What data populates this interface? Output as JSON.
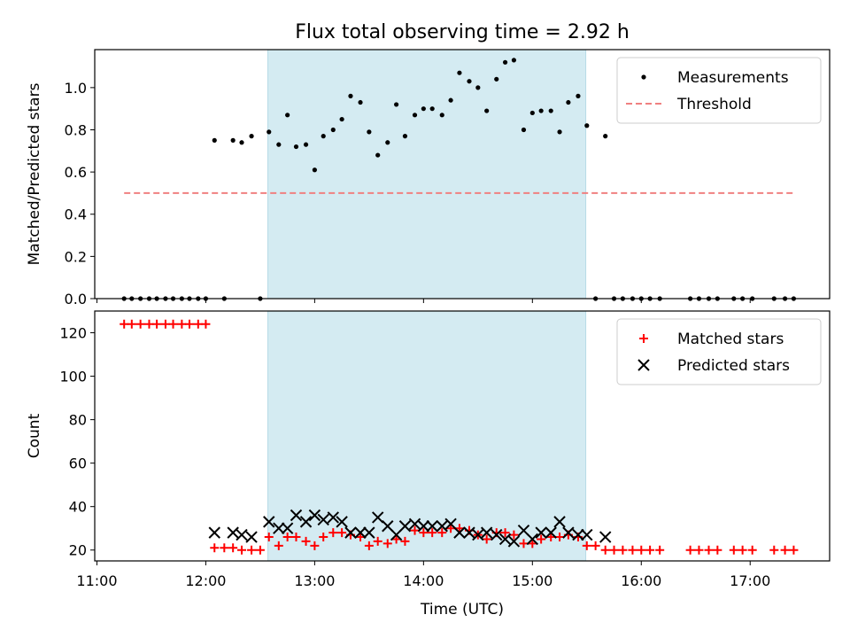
{
  "chart_data": {
    "title": "Flux total observing time = 2.92 h",
    "xlabel": "Time (UTC)",
    "xticks": [
      "11:00",
      "12:00",
      "13:00",
      "14:00",
      "15:00",
      "16:00",
      "17:00"
    ],
    "x_tick_hours": [
      11,
      12,
      13,
      14,
      15,
      16,
      17
    ],
    "xlim_hours": [
      10.98,
      17.73
    ],
    "shaded_span_hours": [
      12.57,
      15.49
    ],
    "shade_color": "#d4ebf2",
    "panels": [
      {
        "type": "scatter",
        "ylabel": "Matched/Predicted stars",
        "ylim": [
          0,
          1.18
        ],
        "yticks": [
          0.0,
          0.2,
          0.4,
          0.6,
          0.8,
          1.0
        ],
        "ytick_labels": [
          "0.0",
          "0.2",
          "0.4",
          "0.6",
          "0.8",
          "1.0"
        ],
        "legend_position": "top-right",
        "threshold": {
          "name": "Threshold",
          "value": 0.5,
          "x_range": [
            11.25,
            17.42
          ],
          "color": "#f08080"
        },
        "series": [
          {
            "name": "Measurements",
            "color": "#000000",
            "points": [
              [
                11.25,
                0
              ],
              [
                11.32,
                0
              ],
              [
                11.4,
                0
              ],
              [
                11.48,
                0
              ],
              [
                11.55,
                0
              ],
              [
                11.63,
                0
              ],
              [
                11.7,
                0
              ],
              [
                11.78,
                0
              ],
              [
                11.85,
                0
              ],
              [
                11.93,
                0
              ],
              [
                12.0,
                0
              ],
              [
                12.08,
                0.75
              ],
              [
                12.17,
                0
              ],
              [
                12.25,
                0.75
              ],
              [
                12.33,
                0.74
              ],
              [
                12.42,
                0.77
              ],
              [
                12.5,
                0
              ],
              [
                12.58,
                0.79
              ],
              [
                12.67,
                0.73
              ],
              [
                12.75,
                0.87
              ],
              [
                12.83,
                0.72
              ],
              [
                12.92,
                0.73
              ],
              [
                13.0,
                0.61
              ],
              [
                13.08,
                0.77
              ],
              [
                13.17,
                0.8
              ],
              [
                13.25,
                0.85
              ],
              [
                13.33,
                0.96
              ],
              [
                13.42,
                0.93
              ],
              [
                13.5,
                0.79
              ],
              [
                13.58,
                0.68
              ],
              [
                13.67,
                0.74
              ],
              [
                13.75,
                0.92
              ],
              [
                13.83,
                0.77
              ],
              [
                13.92,
                0.87
              ],
              [
                14.0,
                0.9
              ],
              [
                14.08,
                0.9
              ],
              [
                14.17,
                0.87
              ],
              [
                14.25,
                0.94
              ],
              [
                14.33,
                1.07
              ],
              [
                14.42,
                1.03
              ],
              [
                14.5,
                1.0
              ],
              [
                14.58,
                0.89
              ],
              [
                14.67,
                1.04
              ],
              [
                14.75,
                1.12
              ],
              [
                14.83,
                1.13
              ],
              [
                14.92,
                0.8
              ],
              [
                15.0,
                0.88
              ],
              [
                15.08,
                0.89
              ],
              [
                15.17,
                0.89
              ],
              [
                15.25,
                0.79
              ],
              [
                15.33,
                0.93
              ],
              [
                15.42,
                0.96
              ],
              [
                15.5,
                0.82
              ],
              [
                15.58,
                0
              ],
              [
                15.67,
                0.77
              ],
              [
                15.75,
                0
              ],
              [
                15.83,
                0
              ],
              [
                15.92,
                0
              ],
              [
                16.0,
                0
              ],
              [
                16.08,
                0
              ],
              [
                16.17,
                0
              ],
              [
                16.45,
                0
              ],
              [
                16.53,
                0
              ],
              [
                16.62,
                0
              ],
              [
                16.7,
                0
              ],
              [
                16.85,
                0
              ],
              [
                16.93,
                0
              ],
              [
                17.02,
                0
              ],
              [
                17.22,
                0
              ],
              [
                17.32,
                0
              ],
              [
                17.4,
                0
              ]
            ]
          }
        ]
      },
      {
        "type": "scatter",
        "ylabel": "Count",
        "ylim": [
          15,
          130
        ],
        "yticks": [
          20,
          40,
          60,
          80,
          100,
          120
        ],
        "ytick_labels": [
          "20",
          "40",
          "60",
          "80",
          "100",
          "120"
        ],
        "legend_position": "top-right",
        "series": [
          {
            "name": "Matched stars",
            "color": "#ff0000",
            "marker": "plus",
            "points": [
              [
                11.25,
                124
              ],
              [
                11.32,
                124
              ],
              [
                11.4,
                124
              ],
              [
                11.48,
                124
              ],
              [
                11.55,
                124
              ],
              [
                11.63,
                124
              ],
              [
                11.7,
                124
              ],
              [
                11.78,
                124
              ],
              [
                11.85,
                124
              ],
              [
                11.93,
                124
              ],
              [
                12.0,
                124
              ],
              [
                12.08,
                21
              ],
              [
                12.17,
                21
              ],
              [
                12.25,
                21
              ],
              [
                12.33,
                20
              ],
              [
                12.42,
                20
              ],
              [
                12.5,
                20
              ],
              [
                12.58,
                26
              ],
              [
                12.67,
                22
              ],
              [
                12.75,
                26
              ],
              [
                12.83,
                26
              ],
              [
                12.92,
                24
              ],
              [
                13.0,
                22
              ],
              [
                13.08,
                26
              ],
              [
                13.17,
                28
              ],
              [
                13.25,
                28
              ],
              [
                13.33,
                27
              ],
              [
                13.42,
                26
              ],
              [
                13.5,
                22
              ],
              [
                13.58,
                24
              ],
              [
                13.67,
                23
              ],
              [
                13.75,
                25
              ],
              [
                13.83,
                24
              ],
              [
                13.92,
                29
              ],
              [
                14.0,
                28
              ],
              [
                14.08,
                28
              ],
              [
                14.17,
                28
              ],
              [
                14.25,
                30
              ],
              [
                14.33,
                30
              ],
              [
                14.42,
                29
              ],
              [
                14.5,
                27
              ],
              [
                14.58,
                25
              ],
              [
                14.67,
                28
              ],
              [
                14.75,
                28
              ],
              [
                14.83,
                27
              ],
              [
                14.92,
                23
              ],
              [
                15.0,
                23
              ],
              [
                15.08,
                25
              ],
              [
                15.17,
                26
              ],
              [
                15.25,
                26
              ],
              [
                15.33,
                27
              ],
              [
                15.42,
                26
              ],
              [
                15.5,
                22
              ],
              [
                15.58,
                22
              ],
              [
                15.67,
                20
              ],
              [
                15.75,
                20
              ],
              [
                15.83,
                20
              ],
              [
                15.92,
                20
              ],
              [
                16.0,
                20
              ],
              [
                16.08,
                20
              ],
              [
                16.17,
                20
              ],
              [
                16.45,
                20
              ],
              [
                16.53,
                20
              ],
              [
                16.62,
                20
              ],
              [
                16.7,
                20
              ],
              [
                16.85,
                20
              ],
              [
                16.93,
                20
              ],
              [
                17.02,
                20
              ],
              [
                17.22,
                20
              ],
              [
                17.32,
                20
              ],
              [
                17.4,
                20
              ]
            ]
          },
          {
            "name": "Predicted stars",
            "color": "#000000",
            "marker": "x",
            "points": [
              [
                12.08,
                28
              ],
              [
                12.25,
                28
              ],
              [
                12.33,
                27
              ],
              [
                12.42,
                26
              ],
              [
                12.58,
                33
              ],
              [
                12.67,
                30
              ],
              [
                12.75,
                30
              ],
              [
                12.83,
                36
              ],
              [
                12.92,
                33
              ],
              [
                13.0,
                36
              ],
              [
                13.08,
                34
              ],
              [
                13.17,
                35
              ],
              [
                13.25,
                33
              ],
              [
                13.33,
                28
              ],
              [
                13.42,
                28
              ],
              [
                13.5,
                28
              ],
              [
                13.58,
                35
              ],
              [
                13.67,
                31
              ],
              [
                13.75,
                27
              ],
              [
                13.83,
                31
              ],
              [
                13.92,
                32
              ],
              [
                14.0,
                31
              ],
              [
                14.08,
                31
              ],
              [
                14.17,
                31
              ],
              [
                14.25,
                32
              ],
              [
                14.33,
                28
              ],
              [
                14.42,
                28
              ],
              [
                14.5,
                27
              ],
              [
                14.58,
                28
              ],
              [
                14.67,
                27
              ],
              [
                14.75,
                25
              ],
              [
                14.83,
                24
              ],
              [
                14.92,
                29
              ],
              [
                15.0,
                25
              ],
              [
                15.08,
                28
              ],
              [
                15.17,
                28
              ],
              [
                15.25,
                33
              ],
              [
                15.33,
                28
              ],
              [
                15.42,
                27
              ],
              [
                15.5,
                27
              ],
              [
                15.67,
                26
              ]
            ]
          }
        ]
      }
    ]
  }
}
